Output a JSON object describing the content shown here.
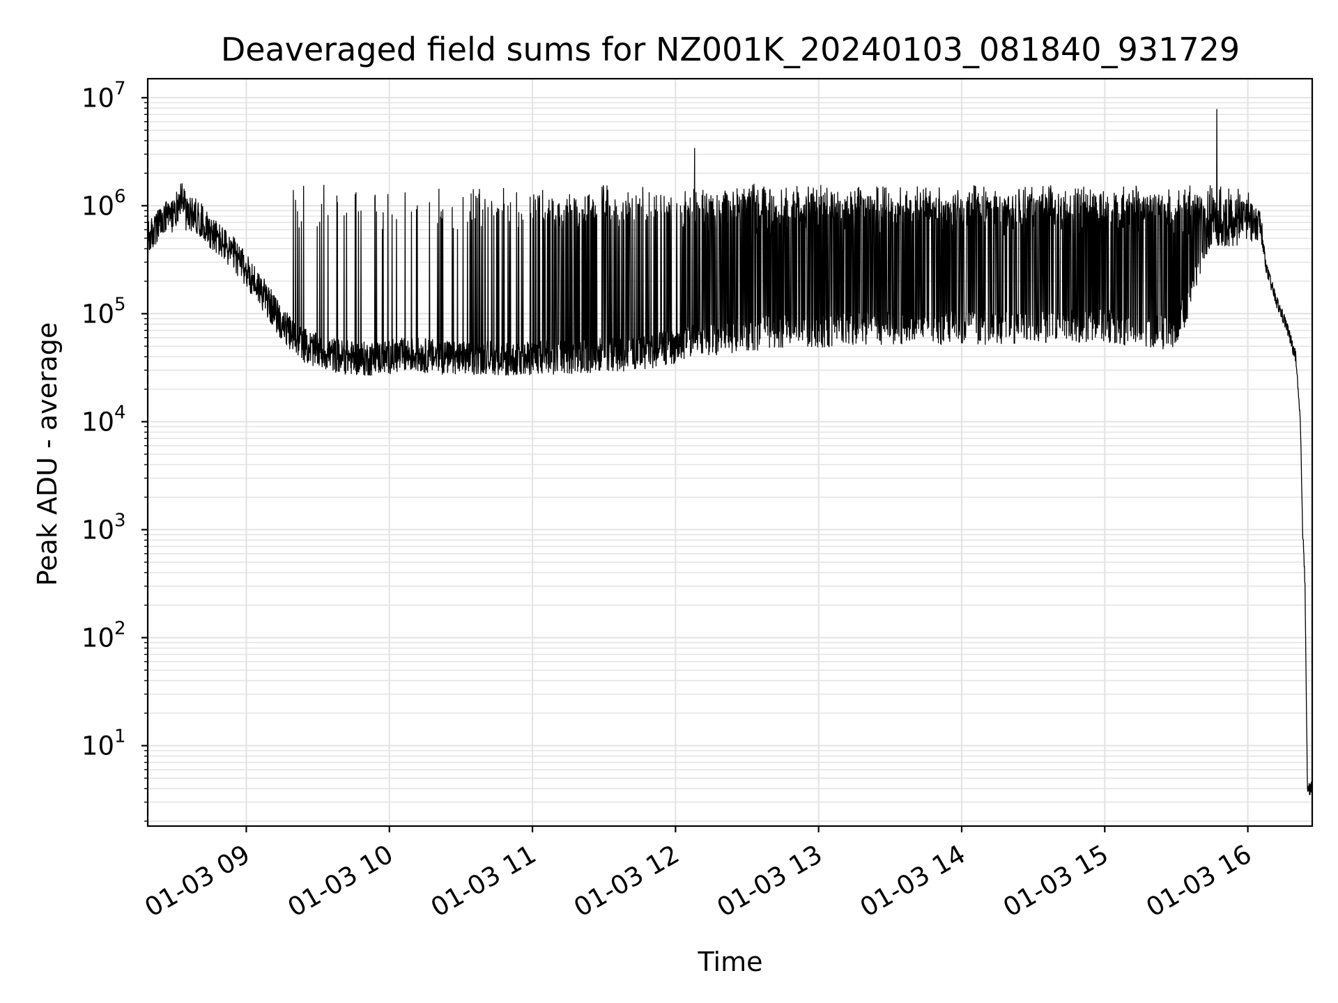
{
  "chart_data": {
    "type": "line",
    "title": "Deaveraged field sums for NZ001K_20240103_081840_931729",
    "xlabel": "Time",
    "ylabel": "Peak ADU - average",
    "yscale": "log",
    "ylim": [
      1.8,
      15000000
    ],
    "xlim": [
      "2024-01-03 08:18:40",
      "2024-01-03 16:27:00"
    ],
    "grid": true,
    "legend": "none",
    "line_color": "#000000",
    "x_ticks": [
      {
        "value": "2024-01-03 09:00",
        "label": "01-03 09"
      },
      {
        "value": "2024-01-03 10:00",
        "label": "01-03 10"
      },
      {
        "value": "2024-01-03 11:00",
        "label": "01-03 11"
      },
      {
        "value": "2024-01-03 12:00",
        "label": "01-03 12"
      },
      {
        "value": "2024-01-03 13:00",
        "label": "01-03 13"
      },
      {
        "value": "2024-01-03 14:00",
        "label": "01-03 14"
      },
      {
        "value": "2024-01-03 15:00",
        "label": "01-03 15"
      },
      {
        "value": "2024-01-03 16:00",
        "label": "01-03 16"
      }
    ],
    "y_ticks": [
      {
        "value": 10,
        "base": "10",
        "exp": "1"
      },
      {
        "value": 100,
        "base": "10",
        "exp": "2"
      },
      {
        "value": 1000,
        "base": "10",
        "exp": "3"
      },
      {
        "value": 10000,
        "base": "10",
        "exp": "4"
      },
      {
        "value": 100000,
        "base": "10",
        "exp": "5"
      },
      {
        "value": 1000000,
        "base": "10",
        "exp": "6"
      },
      {
        "value": 10000000,
        "base": "10",
        "exp": "7"
      }
    ],
    "series": [
      {
        "x": [
          "2024-01-03 08:19",
          "2024-01-03 08:22",
          "2024-01-03 08:26",
          "2024-01-03 08:30",
          "2024-01-03 08:33",
          "2024-01-03 08:35",
          "2024-01-03 08:38",
          "2024-01-03 08:42",
          "2024-01-03 08:46",
          "2024-01-03 08:50",
          "2024-01-03 08:55",
          "2024-01-03 09:00",
          "2024-01-03 09:05",
          "2024-01-03 09:10",
          "2024-01-03 09:15",
          "2024-01-03 09:20",
          "2024-01-03 09:25",
          "2024-01-03 09:30",
          "2024-01-03 09:40",
          "2024-01-03 09:50",
          "2024-01-03 10:00",
          "2024-01-03 10:10",
          "2024-01-03 10:20",
          "2024-01-03 10:30",
          "2024-01-03 10:40",
          "2024-01-03 10:50",
          "2024-01-03 11:00",
          "2024-01-03 11:10",
          "2024-01-03 11:20",
          "2024-01-03 11:30",
          "2024-01-03 11:40",
          "2024-01-03 11:50",
          "2024-01-03 12:00",
          "2024-01-03 12:10",
          "2024-01-03 12:20",
          "2024-01-03 12:30",
          "2024-01-03 12:45",
          "2024-01-03 13:00",
          "2024-01-03 13:15",
          "2024-01-03 13:30",
          "2024-01-03 13:45",
          "2024-01-03 14:00",
          "2024-01-03 14:15",
          "2024-01-03 14:30",
          "2024-01-03 14:45",
          "2024-01-03 15:00",
          "2024-01-03 15:15",
          "2024-01-03 15:30",
          "2024-01-03 15:45",
          "2024-01-03 16:00",
          "2024-01-03 16:05",
          "2024-01-03 16:08",
          "2024-01-03 16:12",
          "2024-01-03 16:16",
          "2024-01-03 16:20",
          "2024-01-03 16:22",
          "2024-01-03 16:23",
          "2024-01-03 16:24",
          "2024-01-03 16:25",
          "2024-01-03 16:27"
        ],
        "y": [
          500000,
          600000,
          750000,
          850000,
          1300000,
          800000,
          850000,
          700000,
          550000,
          450000,
          350000,
          250000,
          180000,
          120000,
          80000,
          60000,
          50000,
          45000,
          40000,
          38000,
          40000,
          42000,
          40000,
          38000,
          40000,
          38000,
          38000,
          40000,
          40000,
          42000,
          42000,
          45000,
          50000,
          60000,
          60000,
          65000,
          70000,
          70000,
          72000,
          75000,
          75000,
          75000,
          75000,
          78000,
          78000,
          78000,
          70000,
          65000,
          600000,
          600000,
          700000,
          250000,
          130000,
          80000,
          40000,
          10000,
          1000,
          300,
          4,
          4
        ]
      }
    ],
    "spikes": [
      {
        "x": "2024-01-03 12:08",
        "y": 3400000
      },
      {
        "x": "2024-01-03 15:47",
        "y": 7800000
      }
    ]
  }
}
